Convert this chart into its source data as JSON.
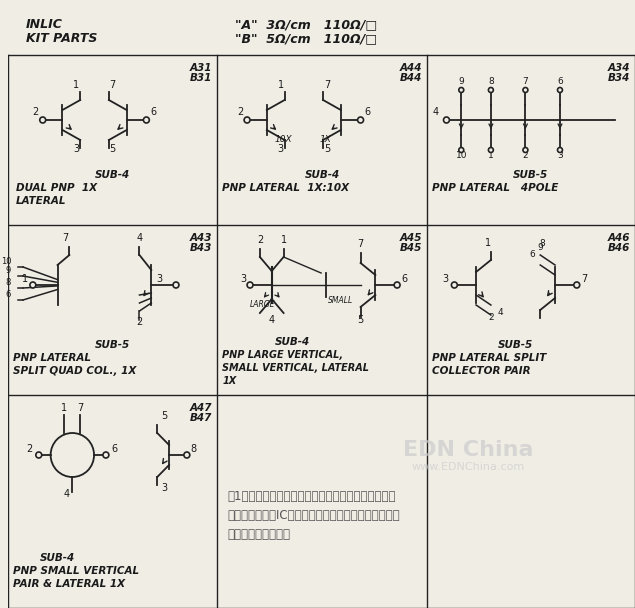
{
  "bg_color": "#f5f3ee",
  "paper_color": "#f0ede5",
  "grid_color": "#222222",
  "text_color": "#1a1a1a",
  "title1": "INLIC",
  "title2": "KIT PARTS",
  "header_line1": "\"A\"  3Ω/cm   110Ω/□",
  "header_line2": "\"B\"  5Ω/cm   110Ω/□",
  "watermark": "EDN China",
  "watermark2": "www.EDNChina.com",
  "caption": "图1，这些工具包器件曾经挂在原美国国家半导体公司\n的工程实验室。IC设计者先选定器件，然后将它们从实\n验室抄屉里找出来。",
  "cells": [
    {
      "row": 0,
      "col": 0,
      "label_top": "A31\nB31",
      "label_bot": "SUB-4",
      "desc": "DUAL PNP  1X\nLATERAL"
    },
    {
      "row": 0,
      "col": 1,
      "label_top": "A44\nB44",
      "label_bot": "SUB-4",
      "desc": "PNP LATERAL  1X:10X"
    },
    {
      "row": 0,
      "col": 2,
      "label_top": "A34\nB34",
      "label_bot": "SUB-5",
      "desc": "PNP LATERAL   4POLE"
    },
    {
      "row": 1,
      "col": 0,
      "label_top": "A43\nB43",
      "label_bot": "SUB-5",
      "desc": "PNP LATERAL\nSPLIT QUAD COL., 1X"
    },
    {
      "row": 1,
      "col": 1,
      "label_top": "A45\nB45",
      "label_bot": "SUB-4",
      "desc": "PNP LARGE VERTICAL,\nSMALL VERTICAL, LATERAL\n1X"
    },
    {
      "row": 1,
      "col": 2,
      "label_top": "A46\nB46",
      "label_bot": "SUB-5",
      "desc": "PNP LATERAL SPLIT\nCOLLECTOR PAIR"
    },
    {
      "row": 2,
      "col": 0,
      "label_top": "A47\nB47",
      "label_bot": "SUB-4",
      "desc": "PNP SMALL VERTICAL\nPAIR & LATERAL 1X"
    },
    {
      "row": 2,
      "col": 1,
      "type": "empty"
    },
    {
      "row": 2,
      "col": 2,
      "type": "text_watermark"
    }
  ]
}
